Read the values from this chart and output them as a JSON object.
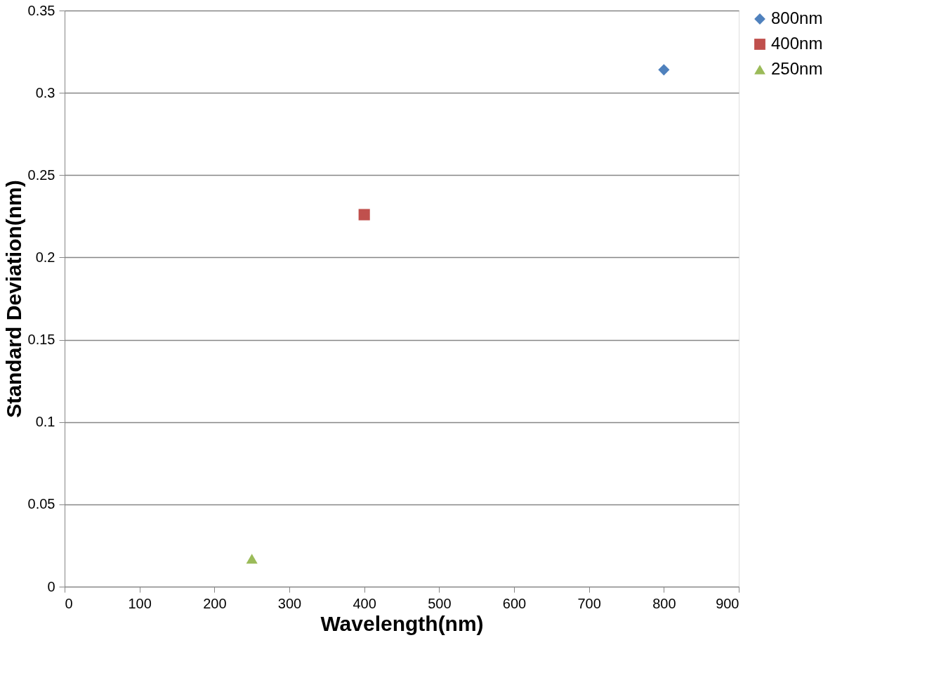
{
  "chart_data": {
    "type": "scatter",
    "xlabel": "Wavelength(nm)",
    "ylabel": "Standard Deviation(nm)",
    "series": [
      {
        "name": "800nm",
        "color": "#4f81bd",
        "marker": "diamond",
        "x": [
          800
        ],
        "values": [
          0.314
        ]
      },
      {
        "name": "400nm",
        "color": "#c0504d",
        "marker": "square",
        "x": [
          400
        ],
        "values": [
          0.226
        ]
      },
      {
        "name": "250nm",
        "color": "#9bbb59",
        "marker": "triangle",
        "x": [
          250
        ],
        "values": [
          0.017
        ]
      }
    ],
    "xlim": [
      0,
      900
    ],
    "xticks": [
      0,
      100,
      200,
      300,
      400,
      500,
      600,
      700,
      800,
      900
    ],
    "ylim": [
      0,
      0.35
    ],
    "yticks": [
      0,
      0.05,
      0.1,
      0.15,
      0.2,
      0.25,
      0.3,
      0.35
    ],
    "grid": "y",
    "legend": "right"
  }
}
